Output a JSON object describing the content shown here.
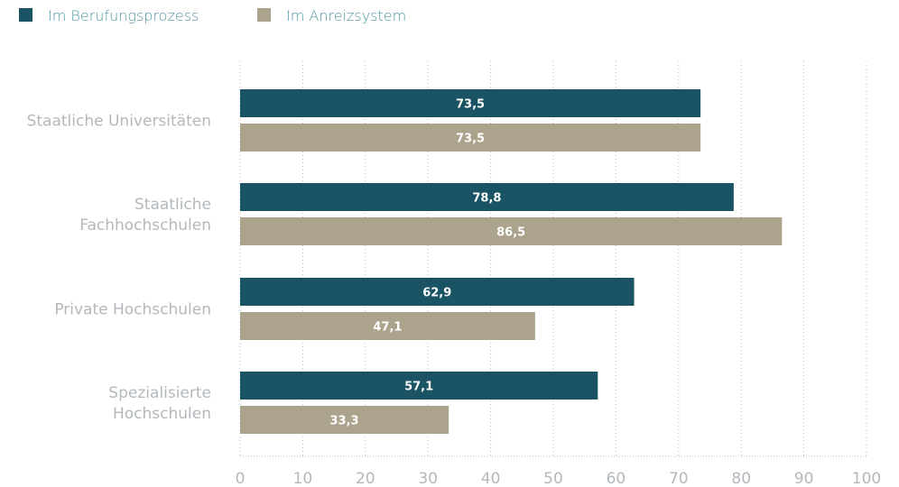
{
  "chart_data": {
    "type": "bar",
    "orientation": "horizontal",
    "categories": [
      [
        "Staatliche Universitäten"
      ],
      [
        "Staatliche",
        "Fachhochschulen"
      ],
      [
        "Private Hochschulen"
      ],
      [
        "Spezialisierte",
        "Hochschulen"
      ]
    ],
    "series": [
      {
        "name": "Im Berufungsprozess",
        "color": "#1a5363",
        "values": [
          73.5,
          78.8,
          62.9,
          57.1
        ],
        "labels": [
          "73,5",
          "78,8",
          "62,9",
          "57,1"
        ]
      },
      {
        "name": "Im Anreizsystem",
        "color": "#aba38b",
        "values": [
          73.5,
          86.5,
          47.1,
          33.3
        ],
        "labels": [
          "73,5",
          "86,5",
          "47,1",
          "33,3"
        ]
      }
    ],
    "xlim": [
      0,
      100
    ],
    "xticks": [
      0,
      10,
      20,
      30,
      40,
      50,
      60,
      70,
      80,
      90,
      100
    ],
    "xtick_labels": [
      "0",
      "10",
      "20",
      "30",
      "40",
      "50",
      "60",
      "70",
      "80",
      "90",
      "100"
    ],
    "grid": true,
    "legend_position": "top-left",
    "title": "",
    "xlabel": "",
    "ylabel": ""
  }
}
